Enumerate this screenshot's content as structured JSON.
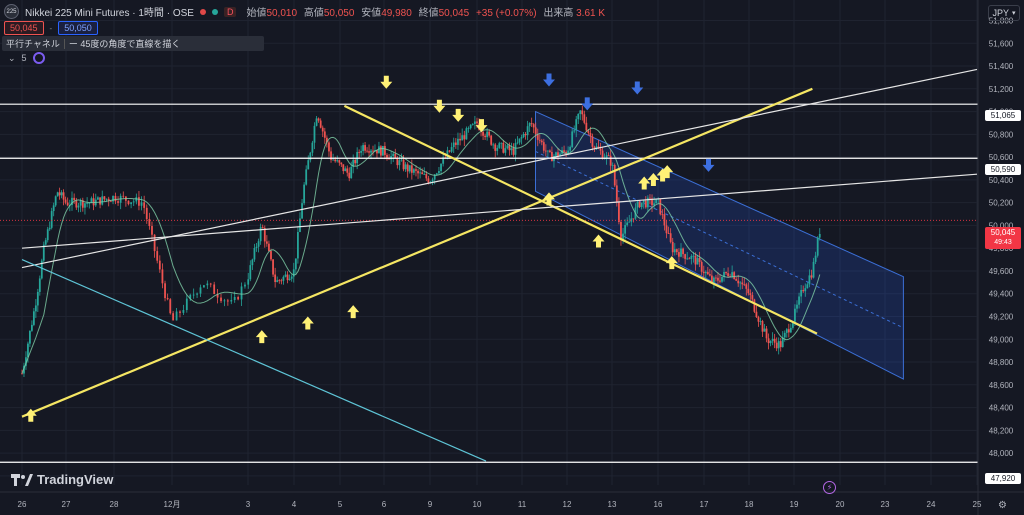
{
  "header": {
    "symbol_badge": "225",
    "title": "Nikkei 225 Mini Futures · 1時間 · OSE",
    "interval_dot": "D",
    "ohlc": [
      {
        "k": "始値",
        "v": "50,010"
      },
      {
        "k": "高値",
        "v": "50,050"
      },
      {
        "k": "安値",
        "v": "49,980"
      },
      {
        "k": "終値",
        "v": "50,045"
      }
    ],
    "change": "+35 (+0.07%)",
    "volume_label": "出来高",
    "volume": "3.61 K",
    "sell_price": "50,045",
    "buy_price": "50,050"
  },
  "toolbar": {
    "tool1": "平行チャネル",
    "tool2": "ー 45度の角度で直線を描く"
  },
  "indicator_count": "5",
  "currency": "JPY",
  "brand": "TradingView",
  "price_labels": {
    "line1": "51,065",
    "line2": "50,590",
    "current": "50,045",
    "countdown": "49:43",
    "bottom": "47,920"
  },
  "colors": {
    "up": "#26a69a",
    "down": "#ef5350",
    "trend": "#f5e663",
    "channel": "#2962ff",
    "teal_line": "#5ec4d6",
    "arrow_up": "#fff176",
    "arrow_down": "#3d6fe0"
  },
  "chart_data": {
    "type": "candlestick",
    "title": "Nikkei 225 Mini Futures · 1時間 · OSE",
    "y_axis": [
      51800,
      51600,
      51400,
      51200,
      51000,
      50800,
      50600,
      50400,
      50200,
      50000,
      49800,
      49600,
      49400,
      49200,
      49000,
      48800,
      48600,
      48400,
      48200,
      48000,
      47800
    ],
    "ylim": [
      47720,
      51980
    ],
    "x_ticks": [
      "26",
      "27",
      "28",
      "12月",
      "3",
      "4",
      "5",
      "6",
      "9",
      "10",
      "11",
      "12",
      "13",
      "16",
      "17",
      "18",
      "19",
      "20",
      "23",
      "24",
      "25"
    ],
    "x_tick_positions": [
      0,
      1,
      2,
      3,
      4,
      5,
      6,
      7,
      8,
      9,
      10,
      11,
      12,
      13,
      14,
      15,
      16,
      17,
      18,
      19,
      20
    ],
    "close_path": [
      [
        0,
        48700
      ],
      [
        0.3,
        49300
      ],
      [
        0.5,
        49800
      ],
      [
        0.8,
        50300
      ],
      [
        1.0,
        50200
      ],
      [
        1.5,
        50200
      ],
      [
        2.0,
        50250
      ],
      [
        2.5,
        50200
      ],
      [
        3.0,
        49150
      ],
      [
        3.4,
        49500
      ],
      [
        3.8,
        49300
      ],
      [
        4.0,
        49550
      ],
      [
        4.3,
        50000
      ],
      [
        4.6,
        49500
      ],
      [
        5.0,
        49600
      ],
      [
        5.2,
        50300
      ],
      [
        5.5,
        51000
      ],
      [
        5.8,
        50600
      ],
      [
        6.2,
        50450
      ],
      [
        6.5,
        50700
      ],
      [
        7.0,
        50650
      ],
      [
        7.5,
        50500
      ],
      [
        8.0,
        50400
      ],
      [
        8.5,
        50700
      ],
      [
        9.0,
        50900
      ],
      [
        9.4,
        50700
      ],
      [
        9.8,
        50650
      ],
      [
        10.2,
        50900
      ],
      [
        10.6,
        50600
      ],
      [
        11.0,
        50650
      ],
      [
        11.3,
        51000
      ],
      [
        11.6,
        50700
      ],
      [
        12.0,
        50550
      ],
      [
        12.2,
        49900
      ],
      [
        12.6,
        50200
      ],
      [
        13.0,
        50200
      ],
      [
        13.3,
        49800
      ],
      [
        13.8,
        49700
      ],
      [
        14.2,
        49500
      ],
      [
        14.6,
        49600
      ],
      [
        15.0,
        49400
      ],
      [
        15.4,
        49000
      ],
      [
        15.7,
        48950
      ],
      [
        16.0,
        49200
      ],
      [
        16.2,
        49450
      ],
      [
        16.4,
        49600
      ],
      [
        16.6,
        50045
      ]
    ],
    "horizontal_lines": [
      51065,
      50590,
      47920
    ],
    "current_price": 50045,
    "trendlines": [
      {
        "color": "yellow",
        "from": [
          0,
          48320
        ],
        "to": [
          16.4,
          51200
        ]
      },
      {
        "color": "yellow",
        "from": [
          6.1,
          51050
        ],
        "to": [
          16.5,
          49050
        ]
      },
      {
        "color": "white",
        "from": [
          0,
          49630
        ],
        "to": [
          20.8,
          51370
        ]
      },
      {
        "color": "white",
        "from": [
          0,
          49800
        ],
        "to": [
          20.8,
          50450
        ]
      },
      {
        "color": "teal",
        "from": [
          0,
          49700
        ],
        "to": [
          9.2,
          47930
        ]
      }
    ],
    "channel": {
      "upper": [
        [
          10.3,
          51000
        ],
        [
          18.4,
          49550
        ]
      ],
      "lower": [
        [
          10.3,
          50300
        ],
        [
          18.4,
          48650
        ]
      ]
    },
    "arrows_up": [
      [
        0.2,
        48390
      ],
      [
        4.3,
        49080
      ],
      [
        5.3,
        49200
      ],
      [
        6.3,
        49300
      ],
      [
        10.6,
        50290
      ],
      [
        11.7,
        49920
      ],
      [
        12.7,
        50430
      ],
      [
        12.9,
        50460
      ],
      [
        13.1,
        50500
      ],
      [
        13.2,
        50530
      ],
      [
        13.3,
        49730
      ]
    ],
    "arrows_down": [
      [
        7.05,
        51200
      ],
      [
        8.2,
        50990
      ],
      [
        8.6,
        50910
      ],
      [
        9.1,
        50820
      ],
      [
        10.6,
        51220
      ],
      [
        11.45,
        51010
      ],
      [
        12.55,
        51150
      ],
      [
        14.1,
        50470
      ]
    ]
  }
}
